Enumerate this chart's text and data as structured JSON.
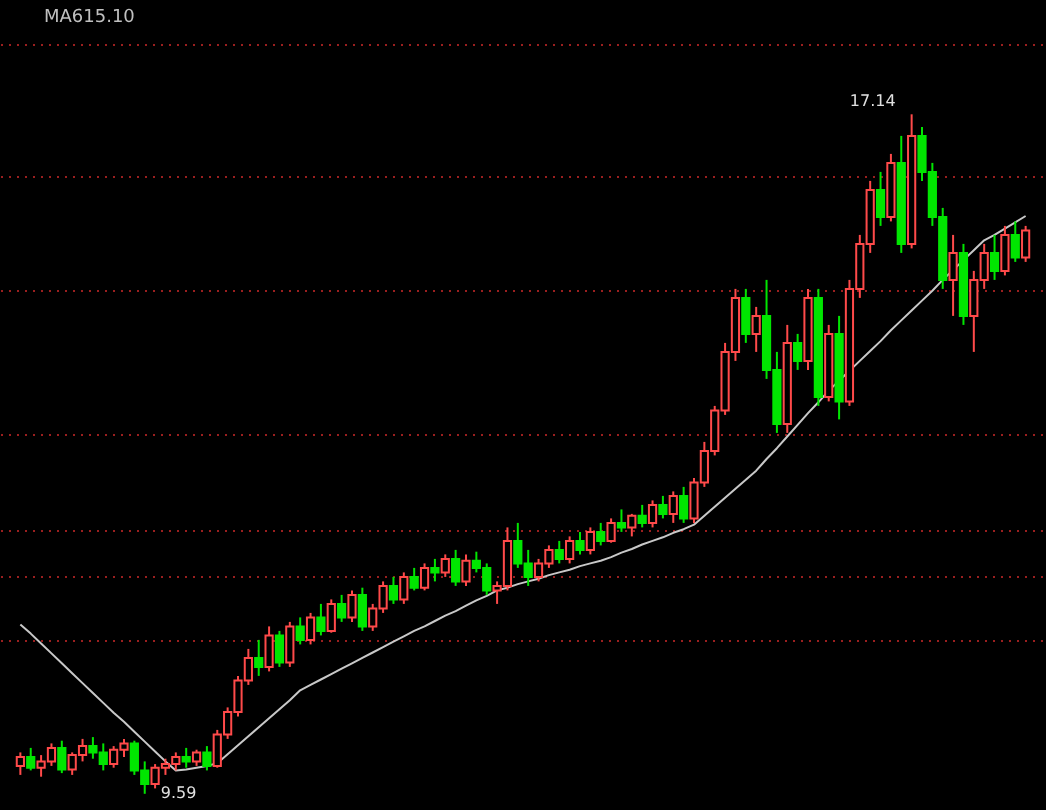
{
  "chart_data": {
    "type": "candlestick",
    "categories": [
      null,
      null,
      null,
      null,
      null,
      null,
      null,
      null,
      null,
      null,
      null,
      null,
      null,
      null,
      null,
      null,
      null,
      null,
      null,
      null,
      null,
      null,
      null,
      null,
      null,
      null,
      null,
      null,
      null,
      null,
      null,
      null,
      null,
      null,
      null,
      null,
      null,
      null,
      null,
      null,
      null,
      null,
      null,
      null,
      null,
      null,
      null,
      null,
      null,
      null,
      null,
      null,
      null,
      null,
      null,
      null,
      null,
      null,
      null,
      null,
      null,
      null,
      null,
      null,
      null,
      null,
      null,
      null,
      null,
      null,
      null,
      null,
      null,
      null,
      null,
      null,
      null,
      null,
      null,
      null,
      null,
      null,
      null,
      null,
      null,
      null,
      null,
      null,
      null,
      null,
      null,
      null,
      null,
      null,
      null,
      null,
      null,
      null
    ],
    "ohlc": [
      [
        9.9,
        10.05,
        9.8,
        10.0
      ],
      [
        10.0,
        10.1,
        9.85,
        9.88
      ],
      [
        9.88,
        10.02,
        9.78,
        9.95
      ],
      [
        9.95,
        10.15,
        9.9,
        10.1
      ],
      [
        10.1,
        10.18,
        9.82,
        9.86
      ],
      [
        9.86,
        10.05,
        9.8,
        10.02
      ],
      [
        10.02,
        10.2,
        9.95,
        10.12
      ],
      [
        10.12,
        10.22,
        9.98,
        10.05
      ],
      [
        10.05,
        10.15,
        9.85,
        9.92
      ],
      [
        9.92,
        10.12,
        9.88,
        10.08
      ],
      [
        10.08,
        10.2,
        10.0,
        10.15
      ],
      [
        10.15,
        10.18,
        9.8,
        9.85
      ],
      [
        9.85,
        9.95,
        9.59,
        9.7
      ],
      [
        9.7,
        9.92,
        9.65,
        9.88
      ],
      [
        9.88,
        9.98,
        9.8,
        9.92
      ],
      [
        9.92,
        10.05,
        9.85,
        10.0
      ],
      [
        10.0,
        10.1,
        9.88,
        9.95
      ],
      [
        9.95,
        10.08,
        9.9,
        10.05
      ],
      [
        10.05,
        10.12,
        9.85,
        9.9
      ],
      [
        9.9,
        10.3,
        9.88,
        10.25
      ],
      [
        10.25,
        10.55,
        10.2,
        10.5
      ],
      [
        10.5,
        10.9,
        10.45,
        10.85
      ],
      [
        10.85,
        11.2,
        10.8,
        11.1
      ],
      [
        11.1,
        11.3,
        10.9,
        11.0
      ],
      [
        11.0,
        11.45,
        10.95,
        11.35
      ],
      [
        11.35,
        11.4,
        11.0,
        11.05
      ],
      [
        11.05,
        11.5,
        11.0,
        11.45
      ],
      [
        11.45,
        11.55,
        11.25,
        11.3
      ],
      [
        11.3,
        11.6,
        11.25,
        11.55
      ],
      [
        11.55,
        11.7,
        11.35,
        11.4
      ],
      [
        11.4,
        11.75,
        11.38,
        11.7
      ],
      [
        11.7,
        11.8,
        11.5,
        11.55
      ],
      [
        11.55,
        11.85,
        11.5,
        11.8
      ],
      [
        11.8,
        11.88,
        11.4,
        11.45
      ],
      [
        11.45,
        11.7,
        11.4,
        11.65
      ],
      [
        11.65,
        11.95,
        11.6,
        11.9
      ],
      [
        11.9,
        12.0,
        11.7,
        11.75
      ],
      [
        11.75,
        12.05,
        11.7,
        12.0
      ],
      [
        12.0,
        12.1,
        11.85,
        11.88
      ],
      [
        11.88,
        12.15,
        11.85,
        12.1
      ],
      [
        12.1,
        12.2,
        11.95,
        12.05
      ],
      [
        12.05,
        12.25,
        12.0,
        12.2
      ],
      [
        12.2,
        12.3,
        11.9,
        11.95
      ],
      [
        11.95,
        12.25,
        11.9,
        12.18
      ],
      [
        12.18,
        12.28,
        12.05,
        12.1
      ],
      [
        12.1,
        12.15,
        11.8,
        11.85
      ],
      [
        11.85,
        11.95,
        11.7,
        11.9
      ],
      [
        11.9,
        12.55,
        11.85,
        12.4
      ],
      [
        12.4,
        12.6,
        12.1,
        12.15
      ],
      [
        12.15,
        12.3,
        11.9,
        12.0
      ],
      [
        12.0,
        12.2,
        11.95,
        12.15
      ],
      [
        12.15,
        12.35,
        12.1,
        12.3
      ],
      [
        12.3,
        12.4,
        12.15,
        12.2
      ],
      [
        12.2,
        12.45,
        12.15,
        12.4
      ],
      [
        12.4,
        12.5,
        12.25,
        12.3
      ],
      [
        12.3,
        12.55,
        12.25,
        12.5
      ],
      [
        12.5,
        12.6,
        12.35,
        12.4
      ],
      [
        12.4,
        12.65,
        12.38,
        12.6
      ],
      [
        12.6,
        12.75,
        12.5,
        12.55
      ],
      [
        12.55,
        12.7,
        12.45,
        12.68
      ],
      [
        12.68,
        12.8,
        12.55,
        12.6
      ],
      [
        12.6,
        12.85,
        12.55,
        12.8
      ],
      [
        12.8,
        12.9,
        12.65,
        12.7
      ],
      [
        12.7,
        12.95,
        12.6,
        12.9
      ],
      [
        12.9,
        13.0,
        12.6,
        12.65
      ],
      [
        12.65,
        13.1,
        12.6,
        13.05
      ],
      [
        13.05,
        13.5,
        13.0,
        13.4
      ],
      [
        13.4,
        13.9,
        13.35,
        13.85
      ],
      [
        13.85,
        14.6,
        13.8,
        14.5
      ],
      [
        14.5,
        15.2,
        14.4,
        15.1
      ],
      [
        15.1,
        15.2,
        14.6,
        14.7
      ],
      [
        14.7,
        15.0,
        14.5,
        14.9
      ],
      [
        14.9,
        15.3,
        14.2,
        14.3
      ],
      [
        14.3,
        14.5,
        13.6,
        13.7
      ],
      [
        13.7,
        14.8,
        13.6,
        14.6
      ],
      [
        14.6,
        14.7,
        14.3,
        14.4
      ],
      [
        14.4,
        15.2,
        14.3,
        15.1
      ],
      [
        15.1,
        15.2,
        13.9,
        14.0
      ],
      [
        14.0,
        14.8,
        13.95,
        14.7
      ],
      [
        14.7,
        14.9,
        13.75,
        13.95
      ],
      [
        13.95,
        15.3,
        13.9,
        15.2
      ],
      [
        15.2,
        15.8,
        15.1,
        15.7
      ],
      [
        15.7,
        16.4,
        15.6,
        16.3
      ],
      [
        16.3,
        16.5,
        15.9,
        16.0
      ],
      [
        16.0,
        16.7,
        15.95,
        16.6
      ],
      [
        16.6,
        16.9,
        15.6,
        15.7
      ],
      [
        15.7,
        17.14,
        15.65,
        16.9
      ],
      [
        16.9,
        17.0,
        16.4,
        16.5
      ],
      [
        16.5,
        16.6,
        15.9,
        16.0
      ],
      [
        16.0,
        16.1,
        15.2,
        15.3
      ],
      [
        15.3,
        15.8,
        14.9,
        15.6
      ],
      [
        15.6,
        15.7,
        14.8,
        14.9
      ],
      [
        14.9,
        15.4,
        14.5,
        15.3
      ],
      [
        15.3,
        15.7,
        15.2,
        15.6
      ],
      [
        15.6,
        15.8,
        15.3,
        15.4
      ],
      [
        15.4,
        15.9,
        15.35,
        15.8
      ],
      [
        15.8,
        15.95,
        15.5,
        15.55
      ],
      [
        15.55,
        15.9,
        15.5,
        15.85
      ]
    ],
    "colors": [
      "#ff4a4a",
      "#00e600",
      "#ff4a4a",
      "#ff4a4a",
      "#00e600",
      "#ff4a4a",
      "#ff4a4a",
      "#00e600",
      "#00e600",
      "#ff4a4a",
      "#ff4a4a",
      "#00e600",
      "#00e600",
      "#ff4a4a",
      "#ff4a4a",
      "#ff4a4a",
      "#00e600",
      "#ff4a4a",
      "#00e600",
      "#ff4a4a",
      "#ff4a4a",
      "#ff4a4a",
      "#ff4a4a",
      "#00e600",
      "#ff4a4a",
      "#00e600",
      "#ff4a4a",
      "#00e600",
      "#ff4a4a",
      "#00e600",
      "#ff4a4a",
      "#00e600",
      "#ff4a4a",
      "#00e600",
      "#ff4a4a",
      "#ff4a4a",
      "#00e600",
      "#ff4a4a",
      "#00e600",
      "#ff4a4a",
      "#00e600",
      "#ff4a4a",
      "#00e600",
      "#ff4a4a",
      "#00e600",
      "#00e600",
      "#ff4a4a",
      "#ff4a4a",
      "#00e600",
      "#00e600",
      "#ff4a4a",
      "#ff4a4a",
      "#00e600",
      "#ff4a4a",
      "#00e600",
      "#ff4a4a",
      "#00e600",
      "#ff4a4a",
      "#00e600",
      "#ff4a4a",
      "#00e600",
      "#ff4a4a",
      "#00e600",
      "#ff4a4a",
      "#00e600",
      "#ff4a4a",
      "#ff4a4a",
      "#ff4a4a",
      "#ff4a4a",
      "#ff4a4a",
      "#00e600",
      "#ff4a4a",
      "#00e600",
      "#00e600",
      "#ff4a4a",
      "#00e600",
      "#ff4a4a",
      "#00e600",
      "#ff4a4a",
      "#00e600",
      "#ff4a4a",
      "#ff4a4a",
      "#ff4a4a",
      "#00e600",
      "#ff4a4a",
      "#00e600",
      "#ff4a4a",
      "#00e600",
      "#00e600",
      "#00e600",
      "#ff4a4a",
      "#00e600",
      "#ff4a4a",
      "#ff4a4a",
      "#00e600",
      "#ff4a4a",
      "#00e600",
      "#ff4a4a"
    ],
    "series": [
      {
        "type": "line",
        "color": "#c8c8c8",
        "values": [
          11.47,
          11.37,
          11.26,
          11.15,
          11.04,
          10.93,
          10.82,
          10.71,
          10.6,
          10.49,
          10.39,
          10.28,
          10.17,
          10.06,
          9.95,
          9.85,
          9.86,
          9.88,
          9.9,
          9.93,
          10.03,
          10.13,
          10.23,
          10.33,
          10.43,
          10.53,
          10.63,
          10.74,
          10.8,
          10.86,
          10.92,
          10.98,
          11.04,
          11.1,
          11.16,
          11.22,
          11.28,
          11.34,
          11.4,
          11.45,
          11.51,
          11.57,
          11.62,
          11.68,
          11.74,
          11.79,
          11.85,
          11.88,
          11.92,
          11.95,
          11.98,
          12.02,
          12.05,
          12.08,
          12.12,
          12.15,
          12.18,
          12.22,
          12.27,
          12.31,
          12.36,
          12.4,
          12.44,
          12.49,
          12.53,
          12.58,
          12.68,
          12.78,
          12.88,
          12.98,
          13.08,
          13.18,
          13.31,
          13.43,
          13.56,
          13.69,
          13.82,
          13.94,
          14.07,
          14.18,
          14.29,
          14.4,
          14.51,
          14.62,
          14.74,
          14.85,
          14.96,
          15.07,
          15.18,
          15.3,
          15.41,
          15.52,
          15.63,
          15.74,
          15.8,
          15.87,
          15.94,
          16.01
        ]
      }
    ],
    "ylim": [
      9.41,
      18.41
    ],
    "yticks": [
      {
        "value": 17.92,
        "label": null
      },
      {
        "value": 16.45,
        "label": null
      },
      {
        "value": 15.18,
        "label": null
      },
      {
        "value": 13.58,
        "label": null
      },
      {
        "value": 12.52,
        "label": null
      },
      {
        "value": 12.01,
        "label": null
      },
      {
        "value": 11.3,
        "label": null
      }
    ],
    "grid": "y",
    "annotations": [
      "MA615.10",
      "17.14",
      "9.59"
    ]
  }
}
